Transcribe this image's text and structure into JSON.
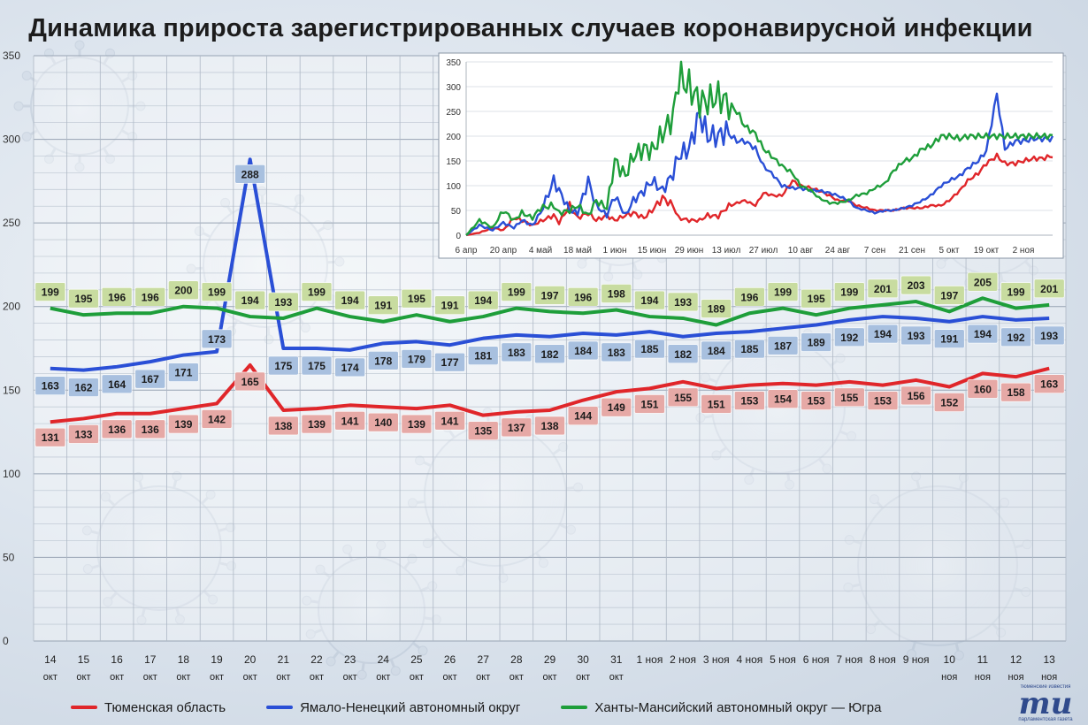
{
  "title": "Динамика прироста зарегистрированных случаев коронавирусной инфекции",
  "colors": {
    "tyumen": "#e0262a",
    "yamal": "#2a4fd6",
    "hmao": "#1e9e3a",
    "tyumen_label_bg": "#e6a9a6",
    "yamal_label_bg": "#a8c0df",
    "hmao_label_bg": "#c8dca0"
  },
  "legend": [
    {
      "name": "Тюменская область",
      "color_key": "tyumen",
      "icon": "line-marker"
    },
    {
      "name": "Ямало-Ненецкий автономный округ",
      "color_key": "yamal",
      "icon": "line-marker"
    },
    {
      "name": "Ханты-Мансийский автономный округ — Югра",
      "color_key": "hmao",
      "icon": "line-marker"
    }
  ],
  "logo": {
    "top_text": "тюменские известия",
    "mark": "mu",
    "bottom_text": "парламентская газета"
  },
  "chart_data": [
    {
      "type": "line",
      "ylim": [
        0,
        350
      ],
      "yticks": [
        0,
        50,
        100,
        150,
        200,
        250,
        300,
        350
      ],
      "grid": true,
      "legend_position": "bottom",
      "x_labels": [
        [
          "14",
          "окт"
        ],
        [
          "15",
          "окт"
        ],
        [
          "16",
          "окт"
        ],
        [
          "17",
          "окт"
        ],
        [
          "18",
          "окт"
        ],
        [
          "19",
          "окт"
        ],
        [
          "20",
          "окт"
        ],
        [
          "21",
          "окт"
        ],
        [
          "22",
          "окт"
        ],
        [
          "23",
          "окт"
        ],
        [
          "24",
          "окт"
        ],
        [
          "25",
          "окт"
        ],
        [
          "26",
          "окт"
        ],
        [
          "27",
          "окт"
        ],
        [
          "28",
          "окт"
        ],
        [
          "29",
          "окт"
        ],
        [
          "30",
          "окт"
        ],
        [
          "31",
          "окт"
        ],
        [
          "1 ноя",
          ""
        ],
        [
          "2 ноя",
          ""
        ],
        [
          "3 ноя",
          ""
        ],
        [
          "4 ноя",
          ""
        ],
        [
          "5 ноя",
          ""
        ],
        [
          "6 ноя",
          ""
        ],
        [
          "7 ноя",
          ""
        ],
        [
          "8 ноя",
          ""
        ],
        [
          "9 ноя",
          ""
        ],
        [
          "10",
          "ноя"
        ],
        [
          "11",
          "ноя"
        ],
        [
          "12",
          "ноя"
        ],
        [
          "13",
          "ноя"
        ]
      ],
      "series": [
        {
          "name": "Тюменская область",
          "color_key": "tyumen",
          "values": [
            131,
            133,
            136,
            136,
            139,
            142,
            165,
            138,
            139,
            141,
            140,
            139,
            141,
            135,
            137,
            138,
            144,
            149,
            151,
            155,
            151,
            153,
            154,
            153,
            155,
            153,
            156,
            152,
            160,
            158,
            163
          ]
        },
        {
          "name": "Ямало-Ненецкий автономный округ",
          "color_key": "yamal",
          "values": [
            163,
            162,
            164,
            167,
            171,
            173,
            288,
            175,
            175,
            174,
            178,
            179,
            177,
            181,
            183,
            182,
            184,
            183,
            185,
            182,
            184,
            185,
            187,
            189,
            192,
            194,
            193,
            191,
            194,
            192,
            193
          ]
        },
        {
          "name": "Ханты-Мансийский автономный округ — Югра",
          "color_key": "hmao",
          "values": [
            199,
            195,
            196,
            196,
            200,
            199,
            194,
            193,
            199,
            194,
            191,
            195,
            191,
            194,
            199,
            197,
            196,
            198,
            194,
            193,
            189,
            196,
            199,
            195,
            199,
            201,
            203,
            197,
            205,
            199,
            201
          ]
        }
      ]
    },
    {
      "type": "line",
      "ylim": [
        0,
        350
      ],
      "yticks": [
        0,
        50,
        100,
        150,
        200,
        250,
        300,
        350
      ],
      "grid": true,
      "x_tick_labels": [
        "6 апр",
        "20 апр",
        "4 май",
        "18 май",
        "1 июн",
        "15 июн",
        "29 июн",
        "13 июл",
        "27 июл",
        "10 авг",
        "24 авг",
        "7 сен",
        "21 сен",
        "5 окт",
        "19 окт",
        "2 ноя"
      ],
      "x_tick_step_days": 14,
      "series": [
        {
          "name": "Тюменская область",
          "color_key": "tyumen",
          "key_days": [
            0,
            5,
            10,
            14,
            18,
            21,
            25,
            28,
            33,
            35,
            39,
            42,
            46,
            49,
            53,
            56,
            60,
            63,
            67,
            70,
            74,
            78,
            80,
            84,
            88,
            91,
            95,
            98,
            102,
            105,
            109,
            112,
            116,
            119,
            123,
            126,
            130,
            133,
            137,
            140,
            144,
            147,
            151,
            154,
            158,
            161,
            165,
            168,
            172,
            175,
            179,
            182,
            186,
            189,
            193,
            196,
            200,
            203,
            207,
            210,
            214,
            217,
            221
          ],
          "key_values": [
            0,
            5,
            15,
            10,
            35,
            30,
            20,
            28,
            40,
            25,
            60,
            35,
            45,
            30,
            40,
            30,
            40,
            45,
            35,
            50,
            75,
            60,
            35,
            30,
            30,
            40,
            38,
            55,
            65,
            70,
            60,
            85,
            80,
            80,
            110,
            100,
            95,
            90,
            80,
            70,
            70,
            60,
            55,
            50,
            50,
            50,
            55,
            55,
            55,
            60,
            60,
            70,
            90,
            110,
            125,
            145,
            160,
            145,
            145,
            150,
            155,
            155,
            160
          ]
        },
        {
          "name": "Ямало-Ненецкий автономный округ",
          "color_key": "yamal",
          "key_days": [
            0,
            5,
            10,
            14,
            18,
            21,
            25,
            28,
            33,
            35,
            39,
            42,
            46,
            49,
            53,
            56,
            60,
            63,
            67,
            70,
            74,
            78,
            80,
            84,
            88,
            91,
            95,
            98,
            102,
            105,
            109,
            112,
            116,
            119,
            123,
            126,
            130,
            133,
            137,
            140,
            144,
            147,
            151,
            154,
            158,
            161,
            165,
            168,
            172,
            175,
            179,
            182,
            186,
            189,
            193,
            196,
            200,
            203,
            207,
            210,
            214,
            217,
            221
          ],
          "key_values": [
            0,
            20,
            10,
            25,
            15,
            30,
            20,
            45,
            110,
            90,
            50,
            45,
            110,
            60,
            40,
            80,
            40,
            70,
            90,
            110,
            90,
            125,
            160,
            175,
            245,
            200,
            200,
            210,
            190,
            190,
            175,
            140,
            120,
            100,
            95,
            95,
            90,
            90,
            85,
            80,
            70,
            55,
            50,
            45,
            50,
            50,
            55,
            60,
            70,
            80,
            100,
            110,
            120,
            135,
            150,
            170,
            285,
            175,
            190,
            190,
            195,
            195,
            195
          ]
        },
        {
          "name": "Ханты-Мансийский автономный округ — Югра",
          "color_key": "hmao",
          "key_days": [
            0,
            5,
            10,
            14,
            18,
            21,
            25,
            28,
            33,
            35,
            39,
            42,
            46,
            49,
            53,
            56,
            60,
            63,
            67,
            70,
            74,
            78,
            80,
            84,
            88,
            91,
            95,
            98,
            102,
            105,
            109,
            112,
            116,
            119,
            123,
            126,
            130,
            133,
            137,
            140,
            144,
            147,
            151,
            154,
            158,
            161,
            165,
            168,
            172,
            175,
            179,
            182,
            186,
            189,
            193,
            196,
            200,
            203,
            207,
            210,
            214,
            217,
            221
          ],
          "key_values": [
            0,
            30,
            15,
            50,
            30,
            45,
            35,
            55,
            60,
            45,
            50,
            60,
            40,
            70,
            55,
            150,
            120,
            160,
            175,
            170,
            205,
            240,
            320,
            300,
            270,
            270,
            280,
            270,
            250,
            220,
            205,
            175,
            155,
            140,
            125,
            100,
            90,
            75,
            65,
            65,
            70,
            80,
            85,
            95,
            105,
            130,
            150,
            155,
            175,
            180,
            200,
            200,
            195,
            200,
            200,
            200,
            200,
            200,
            200,
            200,
            200,
            200,
            200
          ]
        }
      ]
    }
  ]
}
